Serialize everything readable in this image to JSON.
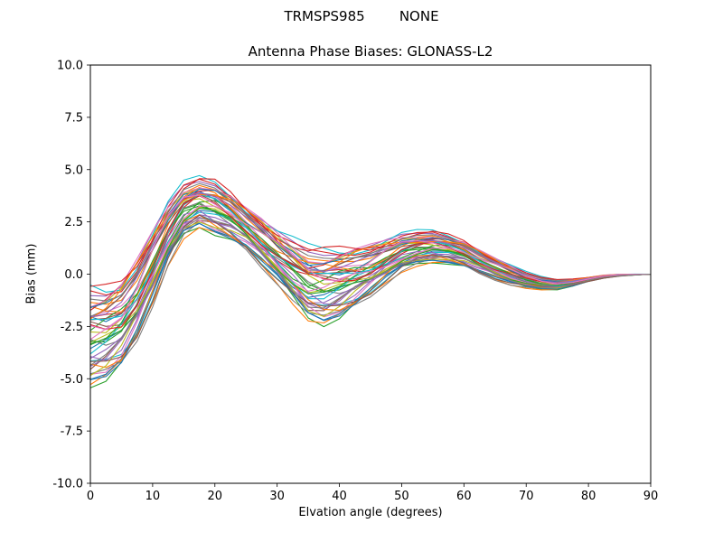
{
  "header": {
    "suptitle": "TRMSPS985        NONE",
    "antenna_type": "TRMSPS985",
    "radome": "NONE"
  },
  "chart_data": {
    "type": "line",
    "title": "Antenna Phase Biases: GLONASS-L2",
    "xlabel": "Elvation angle (degrees)",
    "ylabel": "Bias (mm)",
    "xlim": [
      0,
      90
    ],
    "ylim": [
      -10,
      10
    ],
    "grid": false,
    "legend": "none",
    "xticks": [
      0,
      10,
      20,
      30,
      40,
      50,
      60,
      70,
      80,
      90
    ],
    "xtick_labels": [
      "0",
      "10",
      "20",
      "30",
      "40",
      "50",
      "60",
      "70",
      "80",
      "90"
    ],
    "yticks": [
      -10,
      -7.5,
      -5,
      -2.5,
      0,
      2.5,
      5,
      7.5,
      10
    ],
    "ytick_labels": [
      "-10.0",
      "-7.5",
      "-5.0",
      "-2.5",
      "0.0",
      "2.5",
      "5.0",
      "7.5",
      "10.0"
    ],
    "x": [
      0,
      2.5,
      5,
      7.5,
      10,
      12.5,
      15,
      17.5,
      20,
      22.5,
      25,
      27.5,
      30,
      32.5,
      35,
      37.5,
      40,
      42.5,
      45,
      47.5,
      50,
      52.5,
      55,
      57.5,
      60,
      62.5,
      65,
      67.5,
      70,
      72.5,
      75,
      77.5,
      80,
      82.5,
      85,
      87.5,
      90
    ],
    "ensemble": {
      "base": [
        -3.0,
        -2.8,
        -2.3,
        -1.2,
        0.3,
        1.9,
        3.0,
        3.4,
        3.2,
        2.8,
        2.2,
        1.5,
        0.8,
        0.1,
        -0.5,
        -0.6,
        -0.4,
        -0.1,
        0.2,
        0.6,
        1.0,
        1.2,
        1.3,
        1.2,
        1.0,
        0.6,
        0.25,
        -0.05,
        -0.3,
        -0.45,
        -0.5,
        -0.4,
        -0.25,
        -0.12,
        -0.05,
        -0.02,
        0.0
      ],
      "half_width": [
        2.2,
        2.1,
        2.0,
        1.9,
        1.7,
        1.4,
        1.2,
        1.1,
        1.2,
        1.1,
        1.0,
        1.1,
        1.2,
        1.4,
        1.6,
        1.7,
        1.6,
        1.4,
        1.2,
        1.0,
        0.85,
        0.75,
        0.7,
        0.65,
        0.6,
        0.55,
        0.5,
        0.45,
        0.35,
        0.28,
        0.22,
        0.16,
        0.1,
        0.07,
        0.04,
        0.02,
        0.0
      ],
      "wiggle_freq": 0.85,
      "series": [
        {
          "color": "#1f77b4",
          "offset": -0.35,
          "amp": 0.2,
          "phase": 0.5
        },
        {
          "color": "#ff7f0e",
          "offset": 0.62,
          "amp": 0.15,
          "phase": 2.1
        },
        {
          "color": "#2ca02c",
          "offset": -0.88,
          "amp": 0.25,
          "phase": 4.3
        },
        {
          "color": "#d62728",
          "offset": 0.15,
          "amp": 0.3,
          "phase": 1.2
        },
        {
          "color": "#9467bd",
          "offset": 0.95,
          "amp": 0.12,
          "phase": 3.6
        },
        {
          "color": "#8c564b",
          "offset": -0.55,
          "amp": 0.22,
          "phase": 5.5
        },
        {
          "color": "#e377c2",
          "offset": 0.3,
          "amp": 0.18,
          "phase": 0.9
        },
        {
          "color": "#7f7f7f",
          "offset": -0.15,
          "amp": 0.28,
          "phase": 2.8
        },
        {
          "color": "#bcbd22",
          "offset": 0.78,
          "amp": 0.15,
          "phase": 4.9
        },
        {
          "color": "#17becf",
          "offset": -0.72,
          "amp": 0.2,
          "phase": 1.7
        },
        {
          "color": "#1f77b4",
          "offset": 0.45,
          "amp": 0.25,
          "phase": 3.2
        },
        {
          "color": "#ff7f0e",
          "offset": -1.0,
          "amp": 0.1,
          "phase": 5.9
        },
        {
          "color": "#2ca02c",
          "offset": 0.05,
          "amp": 0.3,
          "phase": 0.3
        },
        {
          "color": "#d62728",
          "offset": 0.88,
          "amp": 0.18,
          "phase": 2.4
        },
        {
          "color": "#9467bd",
          "offset": -0.42,
          "amp": 0.22,
          "phase": 4.6
        },
        {
          "color": "#8c564b",
          "offset": 0.22,
          "amp": 0.15,
          "phase": 1.5
        },
        {
          "color": "#e377c2",
          "offset": -0.62,
          "amp": 0.28,
          "phase": 3.9
        },
        {
          "color": "#7f7f7f",
          "offset": 0.55,
          "amp": 0.12,
          "phase": 5.2
        },
        {
          "color": "#bcbd22",
          "offset": -0.25,
          "amp": 0.2,
          "phase": 0.7
        },
        {
          "color": "#17becf",
          "offset": 1.0,
          "amp": 0.25,
          "phase": 2.6
        },
        {
          "color": "#1f77b4",
          "offset": -0.8,
          "amp": 0.15,
          "phase": 4.1
        },
        {
          "color": "#ff7f0e",
          "offset": 0.38,
          "amp": 0.3,
          "phase": 1.9
        },
        {
          "color": "#2ca02c",
          "offset": -0.05,
          "amp": 0.18,
          "phase": 3.4
        },
        {
          "color": "#d62728",
          "offset": 0.7,
          "amp": 0.22,
          "phase": 5.7
        },
        {
          "color": "#9467bd",
          "offset": -0.48,
          "amp": 0.12,
          "phase": 0.1
        },
        {
          "color": "#8c564b",
          "offset": 0.12,
          "amp": 0.26,
          "phase": 2.2
        },
        {
          "color": "#e377c2",
          "offset": 0.85,
          "amp": 0.2,
          "phase": 4.8
        },
        {
          "color": "#7f7f7f",
          "offset": -0.95,
          "amp": 0.15,
          "phase": 1.4
        },
        {
          "color": "#bcbd22",
          "offset": 0.28,
          "amp": 0.28,
          "phase": 3.8
        },
        {
          "color": "#17becf",
          "offset": -0.2,
          "amp": 0.22,
          "phase": 5.4
        },
        {
          "color": "#1f77b4",
          "offset": 0.58,
          "amp": 0.1,
          "phase": 0.6
        },
        {
          "color": "#ff7f0e",
          "offset": -0.65,
          "amp": 0.25,
          "phase": 2.9
        },
        {
          "color": "#2ca02c",
          "offset": 0.02,
          "amp": 0.18,
          "phase": 4.4
        },
        {
          "color": "#d62728",
          "offset": 0.92,
          "amp": 0.2,
          "phase": 1.1
        },
        {
          "color": "#9467bd",
          "offset": -0.38,
          "amp": 0.3,
          "phase": 3.3
        },
        {
          "color": "#8c564b",
          "offset": 0.48,
          "amp": 0.15,
          "phase": 5.8
        },
        {
          "color": "#e377c2",
          "offset": -0.1,
          "amp": 0.22,
          "phase": 0.2
        },
        {
          "color": "#7f7f7f",
          "offset": 0.75,
          "amp": 0.12,
          "phase": 2.5
        },
        {
          "color": "#bcbd22",
          "offset": -0.58,
          "amp": 0.26,
          "phase": 4.7
        },
        {
          "color": "#17becf",
          "offset": 0.18,
          "amp": 0.2,
          "phase": 1.6
        },
        {
          "color": "#1f77b4",
          "offset": -0.85,
          "amp": 0.15,
          "phase": 3.7
        },
        {
          "color": "#ff7f0e",
          "offset": 0.65,
          "amp": 0.28,
          "phase": 5.1
        },
        {
          "color": "#2ca02c",
          "offset": -0.3,
          "amp": 0.18,
          "phase": 0.8
        },
        {
          "color": "#d62728",
          "offset": 0.08,
          "amp": 0.25,
          "phase": 2.3
        },
        {
          "color": "#9467bd",
          "offset": 0.52,
          "amp": 0.1,
          "phase": 4.2
        },
        {
          "color": "#8c564b",
          "offset": -0.75,
          "amp": 0.22,
          "phase": 1.8
        },
        {
          "color": "#e377c2",
          "offset": 0.35,
          "amp": 0.3,
          "phase": 3.5
        },
        {
          "color": "#7f7f7f",
          "offset": -0.52,
          "amp": 0.16,
          "phase": 5.6
        }
      ]
    }
  }
}
